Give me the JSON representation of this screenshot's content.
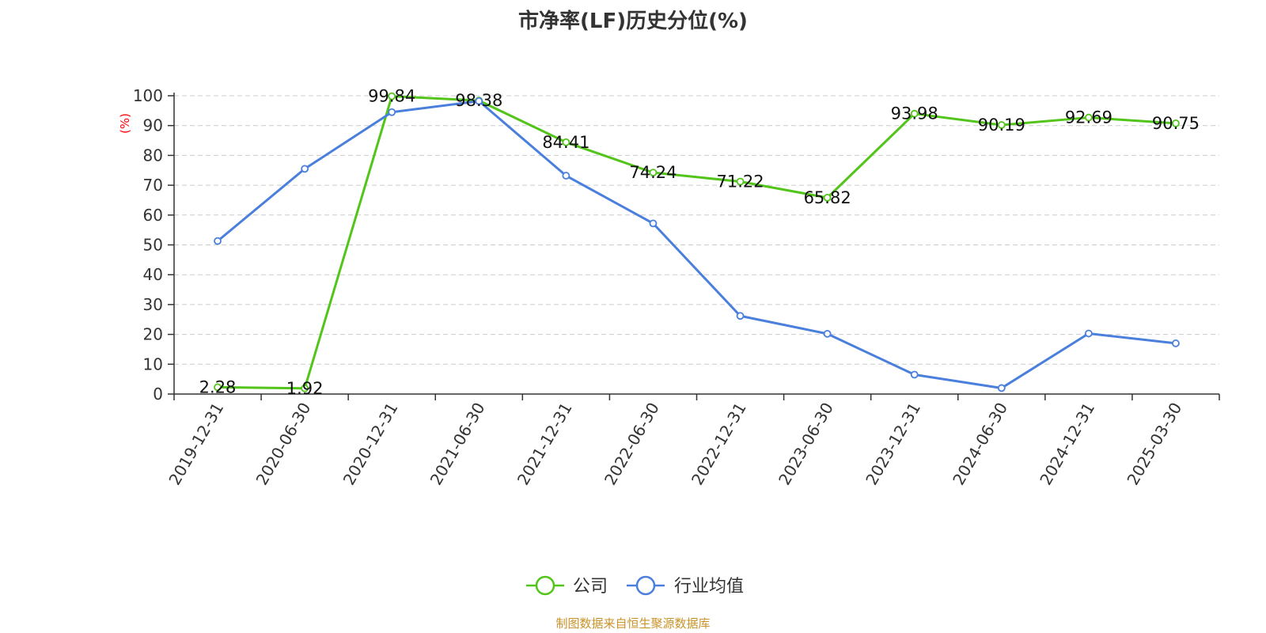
{
  "chart_data": {
    "type": "line",
    "title": "市净率(LF)历史分位(%)",
    "ylabel": "(%)",
    "ylabel_color": "#ff0000",
    "ylim": [
      0,
      100
    ],
    "yticks": [
      0,
      10,
      20,
      30,
      40,
      50,
      60,
      70,
      80,
      90,
      100
    ],
    "grid": true,
    "legend_position": "bottom-center",
    "categories": [
      "2019-12-31",
      "2020-06-30",
      "2020-12-31",
      "2021-06-30",
      "2021-12-31",
      "2022-06-30",
      "2022-12-31",
      "2023-06-30",
      "2023-12-31",
      "2024-06-30",
      "2024-12-31",
      "2025-03-30"
    ],
    "series": [
      {
        "name": "公司",
        "color": "#52c41a",
        "show_labels": true,
        "values": [
          2.28,
          1.92,
          99.84,
          98.38,
          84.41,
          74.24,
          71.22,
          65.82,
          93.98,
          90.19,
          92.69,
          90.75
        ]
      },
      {
        "name": "行业均值",
        "color": "#4a7fdc",
        "show_labels": false,
        "values": [
          51.3,
          75.5,
          94.5,
          98.2,
          73.2,
          57.2,
          26.2,
          20.2,
          6.5,
          2.0,
          20.3,
          17.0
        ]
      }
    ]
  },
  "footer": {
    "source_note": "制图数据来自恒生聚源数据库"
  }
}
